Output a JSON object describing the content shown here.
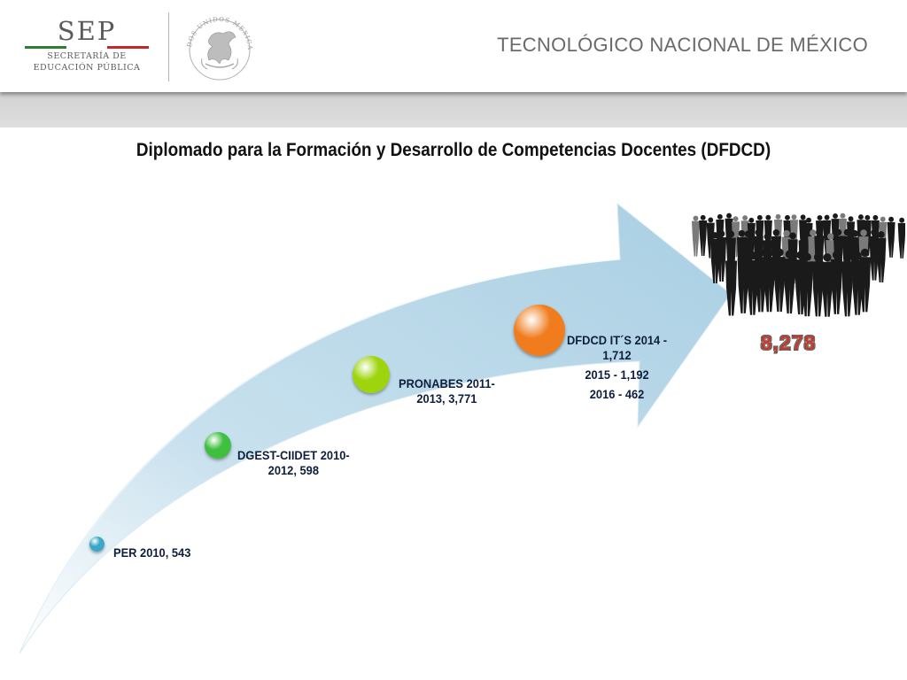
{
  "header": {
    "logo_word": "SEP",
    "logo_line1": "SECRETARÍA DE",
    "logo_line2": "EDUCACIÓN PÚBLICA",
    "seal_text": "ESTADOS UNIDOS MEXICANOS",
    "institution": "TECNOLÓGICO NACIONAL DE MÉXICO",
    "colors": {
      "green": "#2e7d32",
      "white": "#ffffff",
      "red": "#c62828"
    }
  },
  "title": "Diplomado para la Formación y Desarrollo de Competencias Docentes (DFDCD)",
  "milestones": [
    {
      "lines": [
        "PER 2010, 543"
      ],
      "color": "#3aa6c9"
    },
    {
      "lines": [
        "DGEST-CIIDET 2010-",
        "2012, 598"
      ],
      "color": "#3fbf3f"
    },
    {
      "lines": [
        "PRONABES 2011-",
        "2013, 3,771"
      ],
      "color": "#9ed40c"
    },
    {
      "lines": [
        "DFDCD IT´S 2014 -",
        "1,712",
        "2015 - 1,192",
        "2016 - 462"
      ],
      "color": "#f07c1e"
    }
  ],
  "total": "8,278",
  "icons": {
    "crowd": "crowd-silhouette-icon",
    "seal": "mexico-coat-of-arms-icon"
  }
}
